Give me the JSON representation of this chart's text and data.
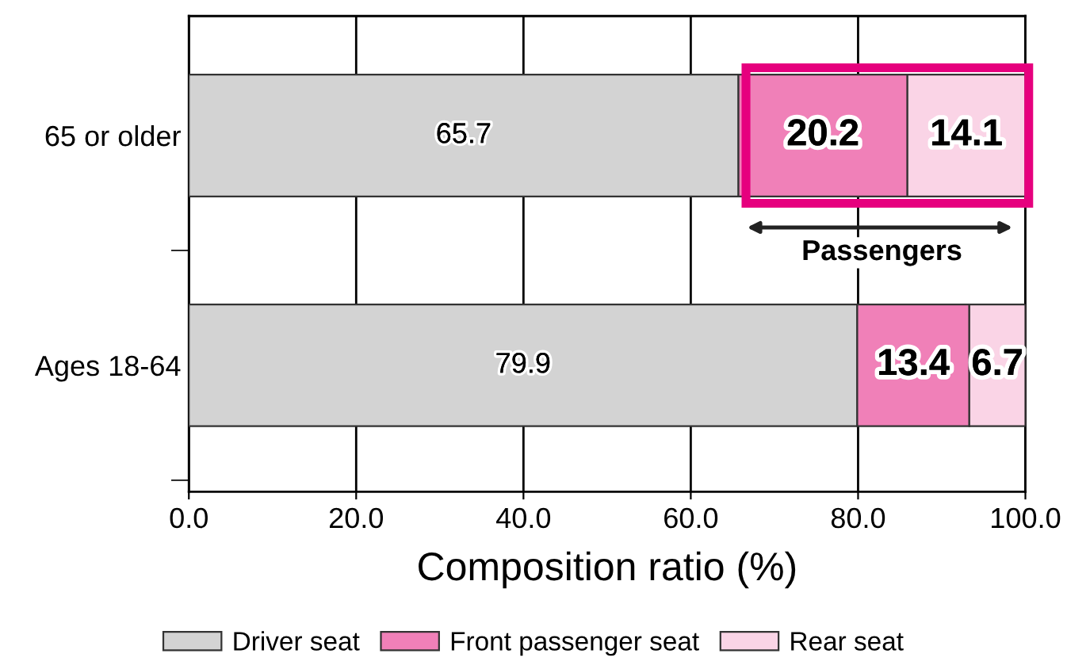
{
  "chart_data": {
    "type": "bar",
    "orientation": "horizontal",
    "stacked": true,
    "categories": [
      "65 or older",
      "Ages 18-64"
    ],
    "series": [
      {
        "name": "Driver seat",
        "color": "#d3d3d3",
        "values": [
          65.7,
          79.9
        ]
      },
      {
        "name": "Front passenger seat",
        "color": "#f080b8",
        "values": [
          20.2,
          13.4
        ]
      },
      {
        "name": "Rear seat",
        "color": "#fad4e6",
        "values": [
          14.1,
          6.7
        ]
      }
    ],
    "xlabel": "Composition ratio (%)",
    "xlim": [
      0,
      100
    ],
    "xticks": [
      {
        "value": 0,
        "label": "0.0"
      },
      {
        "value": 20,
        "label": "20.0"
      },
      {
        "value": 40,
        "label": "40.0"
      },
      {
        "value": 60,
        "label": "60.0"
      },
      {
        "value": 80,
        "label": "80.0"
      },
      {
        "value": 100,
        "label": "100.0"
      }
    ],
    "grid": "x",
    "legend": "bottom",
    "data_labels": true,
    "annotations": [
      "Passengers"
    ]
  }
}
